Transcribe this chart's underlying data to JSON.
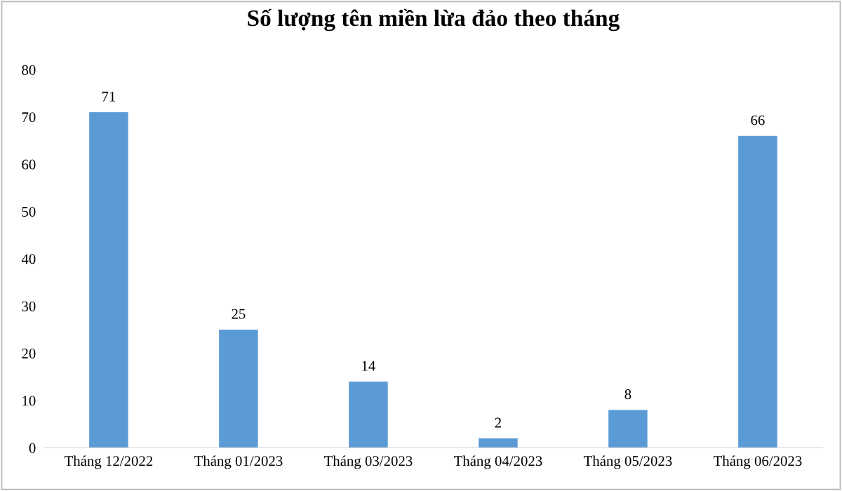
{
  "chart_data": {
    "type": "bar",
    "title": "Số lượng tên miền lừa đảo theo tháng",
    "categories": [
      "Tháng 12/2022",
      "Tháng 01/2023",
      "Tháng 03/2023",
      "Tháng 04/2023",
      "Tháng 05/2023",
      "Tháng 06/2023"
    ],
    "values": [
      71,
      25,
      14,
      2,
      8,
      66
    ],
    "color": "#5b9bd5",
    "ylim": [
      0,
      80
    ],
    "yticks": [
      0,
      10,
      20,
      30,
      40,
      50,
      60,
      70,
      80
    ],
    "grid": false,
    "data_labels": true
  }
}
